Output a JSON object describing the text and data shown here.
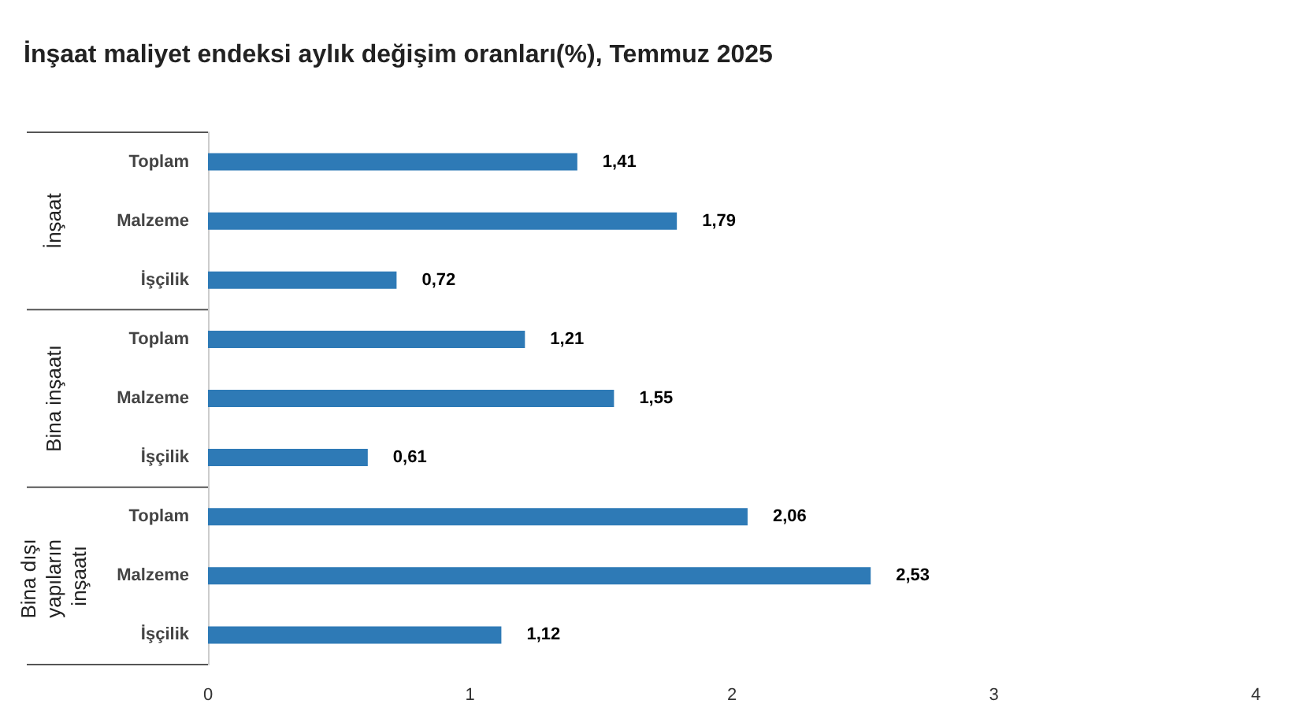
{
  "chart_data": {
    "type": "bar",
    "orientation": "horizontal",
    "title": "İnşaat maliyet endeksi aylık değişim oranları(%), Temmuz 2025",
    "categories": [
      "Toplam",
      "Malzeme",
      "İşçilik",
      "Toplam",
      "Malzeme",
      "İşçilik",
      "Toplam",
      "Malzeme",
      "İşçilik"
    ],
    "values": [
      1.41,
      1.79,
      0.72,
      1.21,
      1.55,
      0.61,
      2.06,
      2.53,
      1.12
    ],
    "value_labels": [
      "1,41",
      "1,79",
      "0,72",
      "1,21",
      "1,55",
      "0,61",
      "2,06",
      "2,53",
      "1,12"
    ],
    "color": "#2e7ab6",
    "xlim": [
      0,
      4
    ],
    "xticks": [
      0,
      1,
      2,
      3,
      4
    ],
    "grid": false,
    "annotations": [
      "İnşaat",
      "Bina inşaatı",
      "Bina dışı yapıların inşaatı"
    ]
  }
}
